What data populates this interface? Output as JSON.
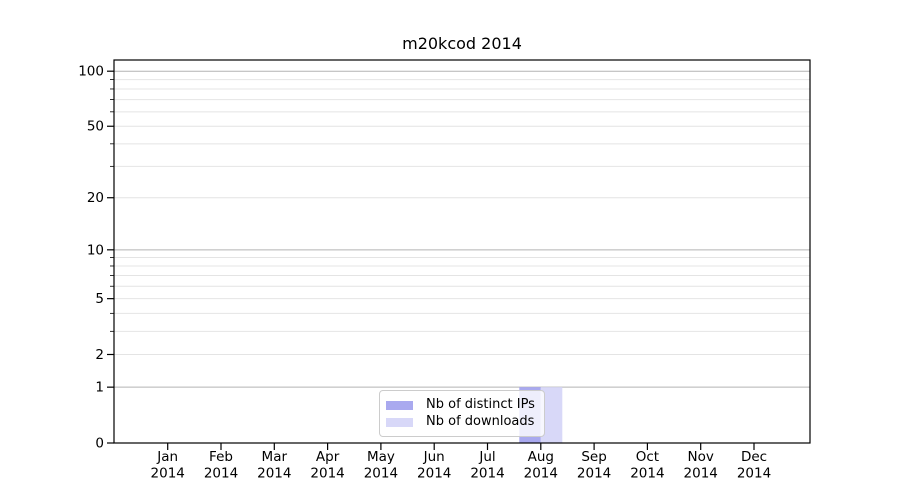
{
  "chart_data": {
    "type": "bar",
    "title": "m20kcod 2014",
    "categories": [
      "Jan",
      "Feb",
      "Mar",
      "Apr",
      "May",
      "Jun",
      "Jul",
      "Aug",
      "Sep",
      "Oct",
      "Nov",
      "Dec"
    ],
    "x_year_label": "2014",
    "series": [
      {
        "name": "Nb of distinct IPs",
        "color": "#a9a9ef",
        "values": [
          0,
          0,
          0,
          0,
          0,
          0,
          0,
          1,
          0,
          0,
          0,
          0
        ]
      },
      {
        "name": "Nb of downloads",
        "color": "#d8d8f8",
        "values": [
          0,
          0,
          0,
          0,
          0,
          0,
          0,
          1,
          0,
          0,
          0,
          0
        ]
      }
    ],
    "yscale": "log1p",
    "ylim": [
      0,
      115
    ],
    "yticks": [
      0,
      1,
      2,
      5,
      10,
      20,
      50,
      100
    ],
    "minor_yticks": [
      2,
      3,
      4,
      5,
      6,
      7,
      8,
      9,
      20,
      30,
      40,
      50,
      60,
      70,
      80,
      90
    ],
    "grid": true,
    "legend_position": "lower center",
    "xlabel": "",
    "ylabel": "",
    "colors": {
      "major_grid": "#b3b3b3",
      "minor_grid": "#e4e4e4",
      "axis": "#000000",
      "background": "#ffffff",
      "legend_border": "#cccccc"
    }
  }
}
